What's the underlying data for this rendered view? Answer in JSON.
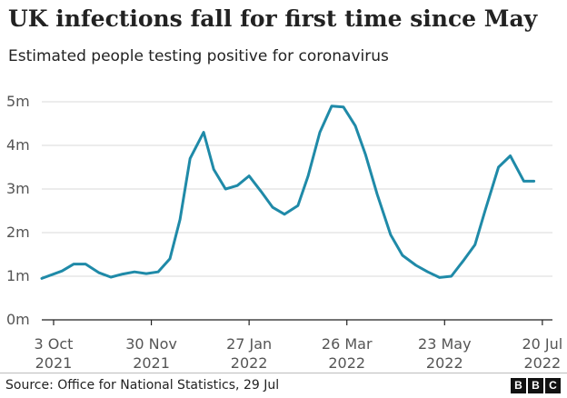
{
  "title": "UK infections fall for first time since May",
  "subtitle": "Estimated people testing positive for coronavirus",
  "source": "Source: Office for National Statistics, 29 Jul",
  "logo": [
    "B",
    "B",
    "C"
  ],
  "colors": {
    "line": "#1f8aa8",
    "grid": "#d9d9d9",
    "axis": "#222222",
    "tick_text": "#555555"
  },
  "chart_data": {
    "type": "line",
    "title": "UK infections fall for first time since May",
    "subtitle": "Estimated people testing positive for coronavirus",
    "xlabel": "",
    "ylabel": "",
    "ylim": [
      0,
      5
    ],
    "grid": true,
    "y_ticks": [
      {
        "value": 0,
        "label": "0m"
      },
      {
        "value": 1,
        "label": "1m"
      },
      {
        "value": 2,
        "label": "2m"
      },
      {
        "value": 3,
        "label": "3m"
      },
      {
        "value": 4,
        "label": "4m"
      },
      {
        "value": 5,
        "label": "5m"
      }
    ],
    "x_ticks": [
      {
        "date": "2021-10-03",
        "label1": "3 Oct",
        "label2": "2021"
      },
      {
        "date": "2021-11-30",
        "label1": "30 Nov",
        "label2": "2021"
      },
      {
        "date": "2022-01-27",
        "label1": "27 Jan",
        "label2": "2022"
      },
      {
        "date": "2022-03-26",
        "label1": "26 Mar",
        "label2": "2022"
      },
      {
        "date": "2022-05-23",
        "label1": "23 May",
        "label2": "2022"
      },
      {
        "date": "2022-07-20",
        "label1": "20 Jul",
        "label2": "2022"
      }
    ],
    "xlim": [
      "2021-09-26",
      "2022-07-26"
    ],
    "series": [
      {
        "x": [
          "2021-09-26",
          "2021-10-08",
          "2021-10-15",
          "2021-10-22",
          "2021-10-30",
          "2021-11-06",
          "2021-11-13",
          "2021-11-20",
          "2021-11-27",
          "2021-12-04",
          "2021-12-11",
          "2021-12-17",
          "2021-12-23",
          "2021-12-31",
          "2022-01-06",
          "2022-01-13",
          "2022-01-20",
          "2022-01-27",
          "2022-02-03",
          "2022-02-10",
          "2022-02-17",
          "2022-02-25",
          "2022-03-03",
          "2022-03-10",
          "2022-03-17",
          "2022-03-24",
          "2022-03-31",
          "2022-04-06",
          "2022-04-13",
          "2022-04-21",
          "2022-04-28",
          "2022-05-06",
          "2022-05-13",
          "2022-05-20",
          "2022-05-27",
          "2022-06-03",
          "2022-06-10",
          "2022-06-16",
          "2022-06-24",
          "2022-07-01",
          "2022-07-09",
          "2022-07-15"
        ],
        "values": [
          0.95,
          1.12,
          1.28,
          1.28,
          1.08,
          0.98,
          1.05,
          1.1,
          1.06,
          1.1,
          1.4,
          2.3,
          3.7,
          4.3,
          3.45,
          3.0,
          3.08,
          3.3,
          2.95,
          2.58,
          2.42,
          2.62,
          3.3,
          4.3,
          4.9,
          4.88,
          4.45,
          3.8,
          2.88,
          1.95,
          1.48,
          1.25,
          1.1,
          0.97,
          1.0,
          1.35,
          1.72,
          2.5,
          3.5,
          3.76,
          3.18,
          3.18
        ]
      }
    ]
  }
}
